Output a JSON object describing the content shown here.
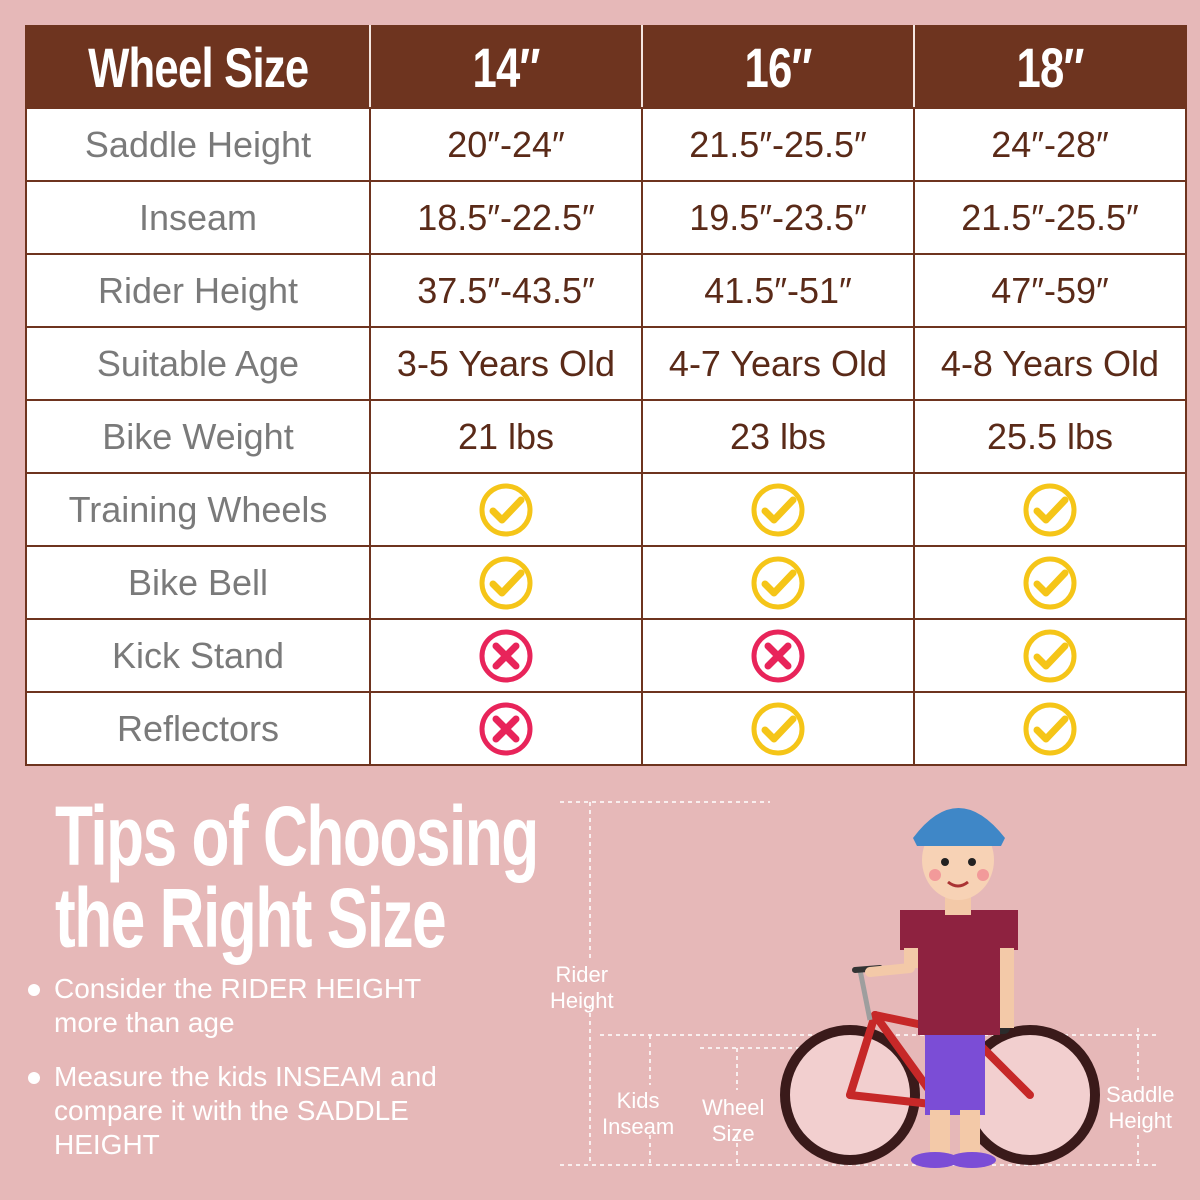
{
  "table": {
    "header": [
      "Wheel Size",
      "14″",
      "16″",
      "18″"
    ],
    "rows": [
      {
        "label": "Saddle Height",
        "values": [
          "20″-24″",
          "21.5″-25.5″",
          "24″-28″"
        ]
      },
      {
        "label": "Inseam",
        "values": [
          "18.5″-22.5″",
          "19.5″-23.5″",
          "21.5″-25.5″"
        ]
      },
      {
        "label": "Rider Height",
        "values": [
          "37.5″-43.5″",
          "41.5″-51″",
          "47″-59″"
        ]
      },
      {
        "label": "Suitable Age",
        "values": [
          "3-5 Years Old",
          "4-7 Years Old",
          "4-8 Years Old"
        ]
      },
      {
        "label": "Bike Weight",
        "values": [
          "21 lbs",
          "23 lbs",
          "25.5 lbs"
        ]
      },
      {
        "label": "Training Wheels",
        "icons": [
          "check-icon",
          "check-icon",
          "check-icon"
        ]
      },
      {
        "label": "Bike Bell",
        "icons": [
          "check-icon",
          "check-icon",
          "check-icon"
        ]
      },
      {
        "label": "Kick Stand",
        "icons": [
          "cross-icon",
          "cross-icon",
          "check-icon"
        ]
      },
      {
        "label": "Reflectors",
        "icons": [
          "cross-icon",
          "check-icon",
          "check-icon"
        ]
      }
    ]
  },
  "tips": {
    "title_line1": "Tips of Choosing",
    "title_line2": "the Right Size",
    "items": [
      "Consider the RIDER HEIGHT more than age",
      "Measure the kids INSEAM and compare it with the SADDLE HEIGHT"
    ]
  },
  "diagram": {
    "rider_height_label": "Rider Height",
    "kids_inseam_label": "Kids Inseam",
    "wheel_size_label": "Wheel Size",
    "saddle_height_label": "Saddle Height"
  },
  "colors": {
    "background": "#e6b8b8",
    "header": "#6e341f",
    "check": "#f5c518",
    "cross": "#e8245a"
  }
}
